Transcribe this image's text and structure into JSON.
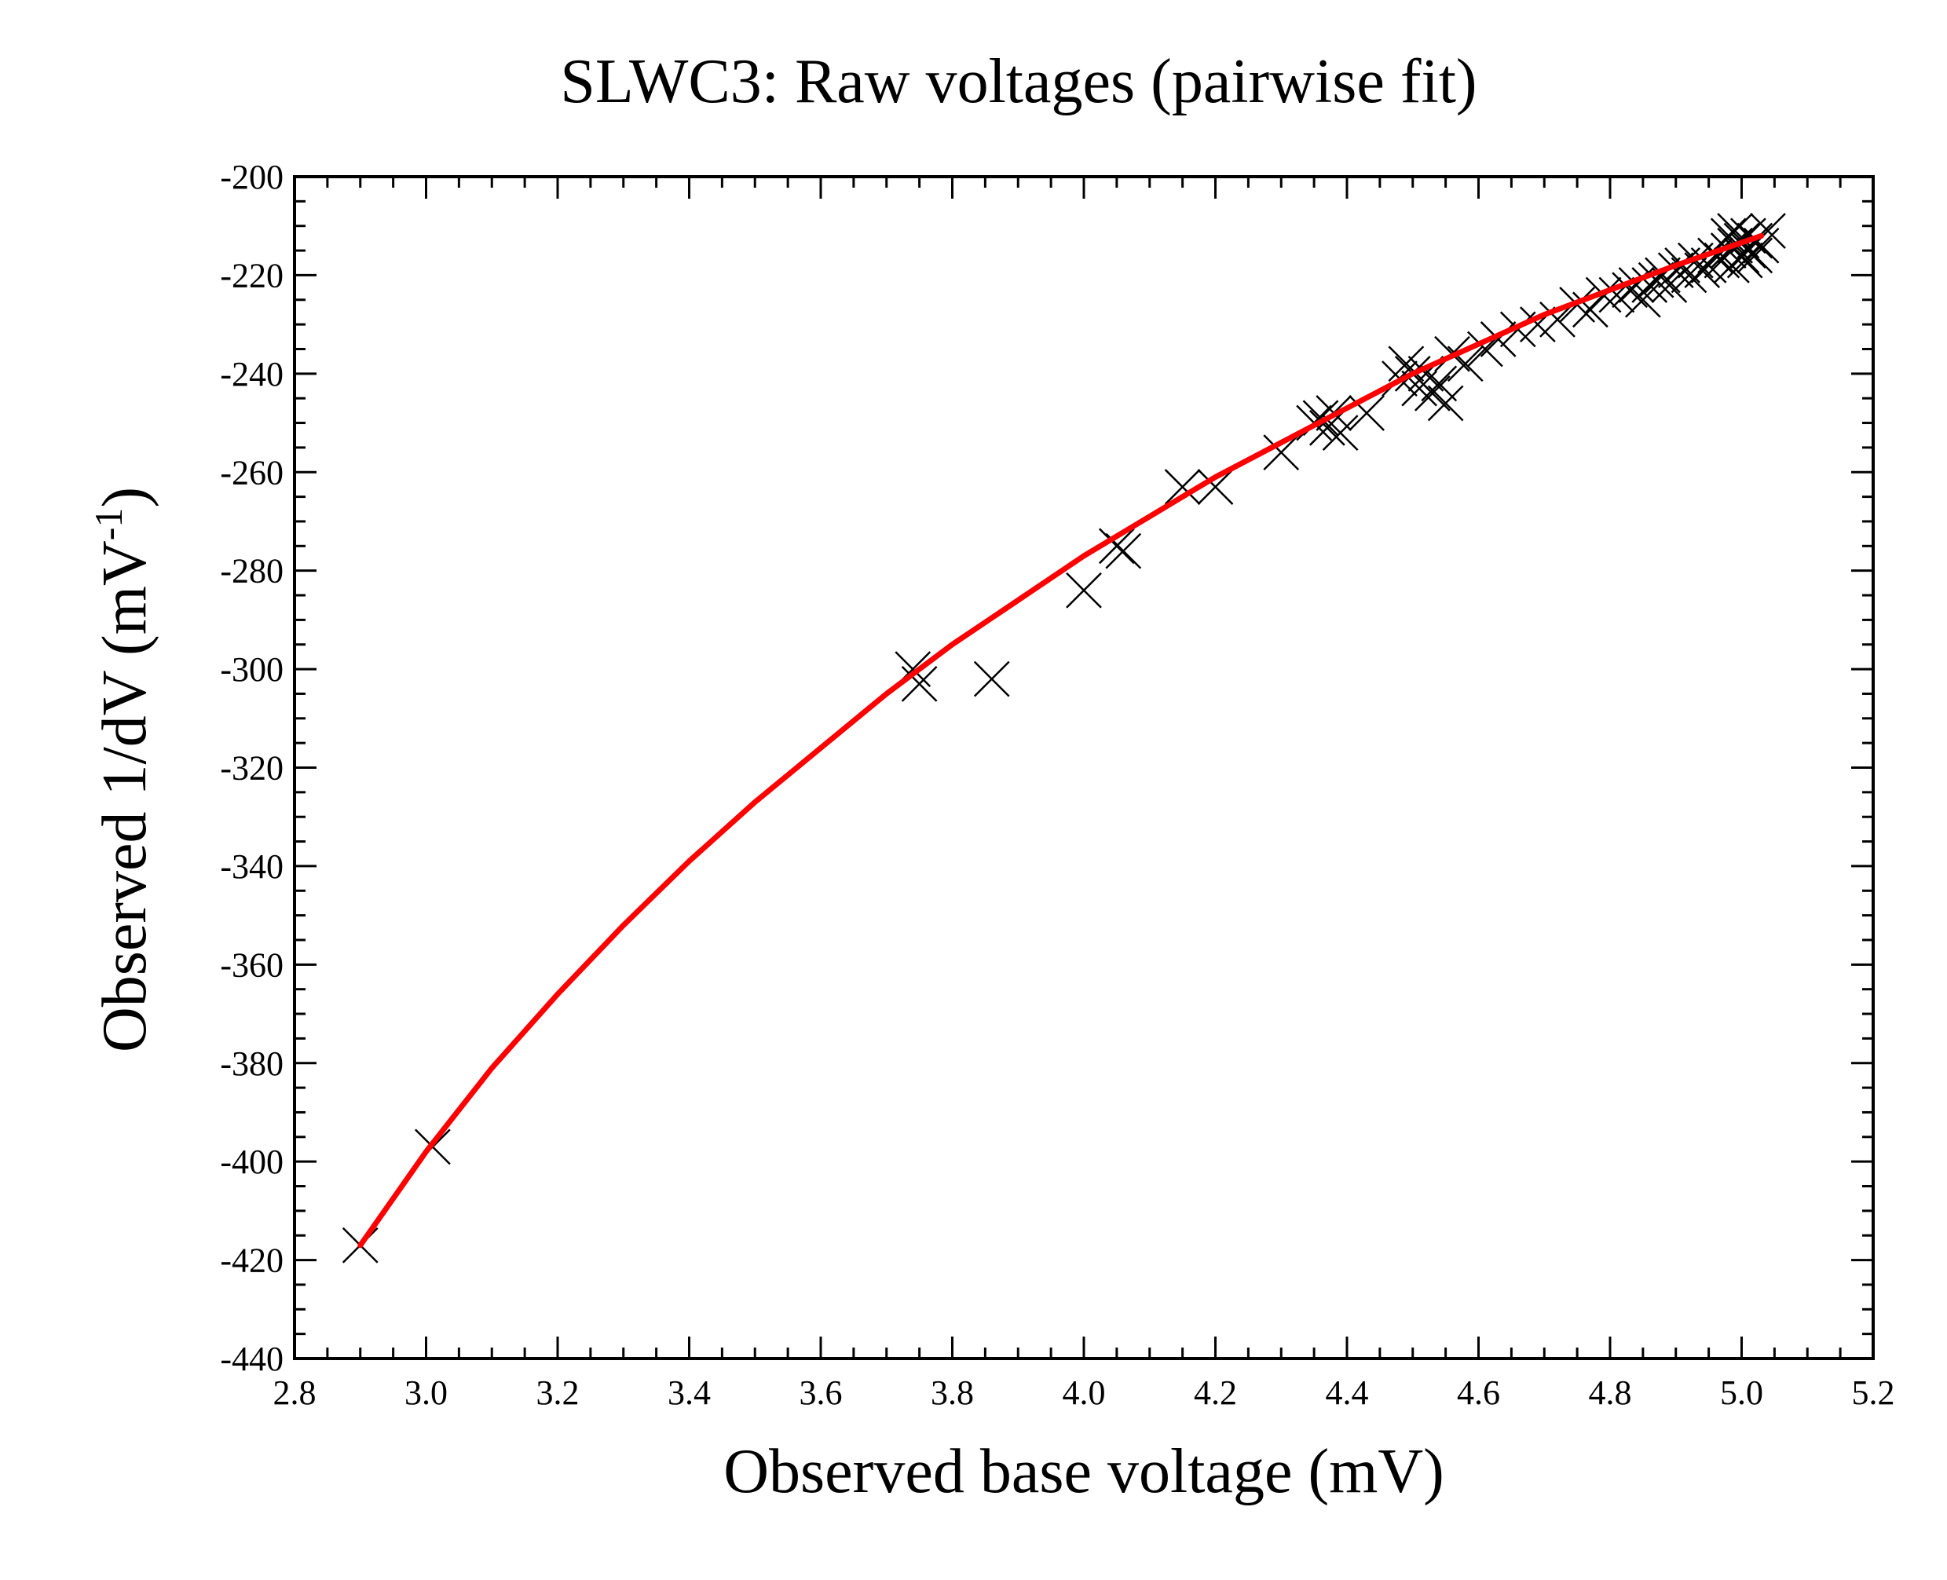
{
  "chart_data": {
    "type": "scatter",
    "title": "SLWC3: Raw voltages (pairwise fit)",
    "xlabel": "Observed base voltage (mV)",
    "ylabel_main": "Observed 1/dV (mV",
    "ylabel_sup": "-1",
    "ylabel_close": ")",
    "xlim": [
      2.8,
      5.2
    ],
    "ylim": [
      -440,
      -200
    ],
    "x_ticks": [
      "2.8",
      "3.0",
      "3.2",
      "3.4",
      "3.6",
      "3.8",
      "4.0",
      "4.2",
      "4.4",
      "4.6",
      "4.8",
      "5.0",
      "5.2"
    ],
    "y_ticks": [
      "-200",
      "-220",
      "-240",
      "-260",
      "-280",
      "-300",
      "-320",
      "-340",
      "-360",
      "-380",
      "-400",
      "-420",
      "-440"
    ],
    "grid": false,
    "series": [
      {
        "name": "observed",
        "marker": "x",
        "color": "#000000",
        "points": [
          [
            2.9,
            -417
          ],
          [
            3.01,
            -397
          ],
          [
            3.74,
            -300
          ],
          [
            3.75,
            -303
          ],
          [
            3.86,
            -302
          ],
          [
            4.0,
            -284
          ],
          [
            4.05,
            -275
          ],
          [
            4.06,
            -276
          ],
          [
            4.15,
            -263
          ],
          [
            4.2,
            -263
          ],
          [
            4.3,
            -256
          ],
          [
            4.35,
            -250
          ],
          [
            4.36,
            -249
          ],
          [
            4.37,
            -251
          ],
          [
            4.38,
            -248
          ],
          [
            4.39,
            -252
          ],
          [
            4.43,
            -248
          ],
          [
            4.48,
            -241
          ],
          [
            4.49,
            -238
          ],
          [
            4.5,
            -240
          ],
          [
            4.51,
            -243
          ],
          [
            4.52,
            -240
          ],
          [
            4.53,
            -244
          ],
          [
            4.54,
            -242
          ],
          [
            4.55,
            -246
          ],
          [
            4.56,
            -236
          ],
          [
            4.58,
            -238
          ],
          [
            4.61,
            -235
          ],
          [
            4.63,
            -233
          ],
          [
            4.66,
            -231
          ],
          [
            4.69,
            -230
          ],
          [
            4.72,
            -229
          ],
          [
            4.75,
            -226
          ],
          [
            4.77,
            -227
          ],
          [
            4.79,
            -224
          ],
          [
            4.81,
            -224
          ],
          [
            4.83,
            -223
          ],
          [
            4.84,
            -222
          ],
          [
            4.85,
            -225
          ],
          [
            4.86,
            -222
          ],
          [
            4.87,
            -221
          ],
          [
            4.88,
            -220
          ],
          [
            4.89,
            -222
          ],
          [
            4.9,
            -219
          ],
          [
            4.91,
            -218
          ],
          [
            4.92,
            -220
          ],
          [
            4.93,
            -217
          ],
          [
            4.94,
            -219
          ],
          [
            4.95,
            -218
          ],
          [
            4.96,
            -216
          ],
          [
            4.97,
            -217
          ],
          [
            4.98,
            -212
          ],
          [
            4.98,
            -215
          ],
          [
            4.99,
            -211
          ],
          [
            4.99,
            -214
          ],
          [
            5.0,
            -213
          ],
          [
            5.0,
            -216
          ],
          [
            5.01,
            -212
          ],
          [
            5.01,
            -215
          ],
          [
            5.02,
            -213
          ],
          [
            5.02,
            -216
          ],
          [
            5.03,
            -214
          ],
          [
            5.04,
            -211
          ],
          [
            4.985,
            -218
          ],
          [
            5.005,
            -217
          ]
        ]
      },
      {
        "name": "pairwise fit",
        "type": "line",
        "color": "#ff0000",
        "points": [
          [
            2.9,
            -417
          ],
          [
            3.0,
            -398
          ],
          [
            3.1,
            -381
          ],
          [
            3.2,
            -366
          ],
          [
            3.3,
            -352
          ],
          [
            3.4,
            -339
          ],
          [
            3.5,
            -327
          ],
          [
            3.6,
            -316
          ],
          [
            3.7,
            -305
          ],
          [
            3.8,
            -295
          ],
          [
            3.9,
            -286
          ],
          [
            4.0,
            -277
          ],
          [
            4.1,
            -269
          ],
          [
            4.2,
            -261
          ],
          [
            4.3,
            -254
          ],
          [
            4.4,
            -247
          ],
          [
            4.5,
            -240
          ],
          [
            4.6,
            -234
          ],
          [
            4.7,
            -228
          ],
          [
            4.8,
            -223
          ],
          [
            4.9,
            -218
          ],
          [
            5.03,
            -212
          ]
        ]
      }
    ]
  }
}
